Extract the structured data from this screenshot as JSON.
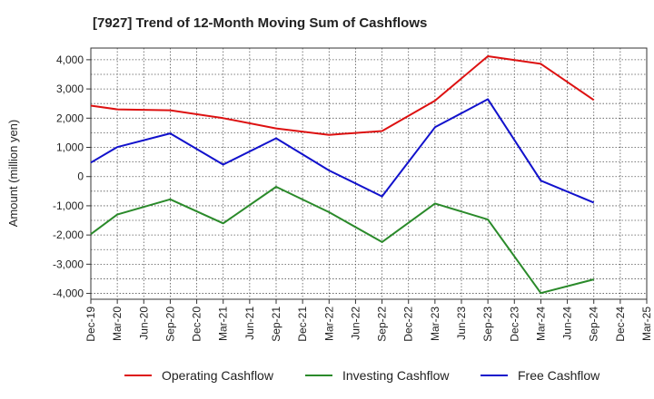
{
  "chart_data": {
    "type": "line",
    "title": "[7927]  Trend of 12-Month Moving Sum of Cashflows",
    "xlabel": "",
    "ylabel": "Amount (million yen)",
    "ylim": [
      -4200,
      4400
    ],
    "yticks": [
      4000,
      3000,
      2000,
      1000,
      0,
      -1000,
      -2000,
      -3000,
      -4000
    ],
    "ytick_labels": [
      "4,000",
      "3,000",
      "2,000",
      "1,000",
      "0",
      "-1,000",
      "-2,000",
      "-3,000",
      "-4,000"
    ],
    "x": [
      "Dec-19",
      "Mar-20",
      "Jun-20",
      "Sep-20",
      "Dec-20",
      "Mar-21",
      "Jun-21",
      "Sep-21",
      "Dec-21",
      "Mar-22",
      "Jun-22",
      "Sep-22",
      "Dec-22",
      "Mar-23",
      "Jun-23",
      "Sep-23",
      "Dec-23",
      "Mar-24",
      "Jun-24",
      "Sep-24",
      "Dec-24",
      "Mar-25"
    ],
    "grid": true,
    "legend_position": "bottom",
    "series": [
      {
        "name": "Operating Cashflow",
        "color": "#dd1111",
        "points": [
          [
            "Dec-19",
            2430
          ],
          [
            "Mar-20",
            2300
          ],
          [
            "Sep-20",
            2270
          ],
          [
            "Mar-21",
            2000
          ],
          [
            "Sep-21",
            1650
          ],
          [
            "Mar-22",
            1430
          ],
          [
            "Sep-22",
            1560
          ],
          [
            "Mar-23",
            2600
          ],
          [
            "Sep-23",
            4120
          ],
          [
            "Mar-24",
            3860
          ],
          [
            "Sep-24",
            2620
          ]
        ]
      },
      {
        "name": "Investing Cashflow",
        "color": "#2a8a2a",
        "points": [
          [
            "Dec-19",
            -1970
          ],
          [
            "Mar-20",
            -1300
          ],
          [
            "Sep-20",
            -780
          ],
          [
            "Mar-21",
            -1600
          ],
          [
            "Sep-21",
            -350
          ],
          [
            "Mar-22",
            -1220
          ],
          [
            "Sep-22",
            -2240
          ],
          [
            "Mar-23",
            -920
          ],
          [
            "Sep-23",
            -1470
          ],
          [
            "Mar-24",
            -3990
          ],
          [
            "Sep-24",
            -3520
          ]
        ]
      },
      {
        "name": "Free Cashflow",
        "color": "#1111cc",
        "points": [
          [
            "Dec-19",
            480
          ],
          [
            "Mar-20",
            1010
          ],
          [
            "Sep-20",
            1480
          ],
          [
            "Mar-21",
            410
          ],
          [
            "Sep-21",
            1310
          ],
          [
            "Mar-22",
            210
          ],
          [
            "Sep-22",
            -680
          ],
          [
            "Mar-23",
            1690
          ],
          [
            "Sep-23",
            2650
          ],
          [
            "Mar-24",
            -140
          ],
          [
            "Sep-24",
            -890
          ]
        ]
      }
    ]
  }
}
